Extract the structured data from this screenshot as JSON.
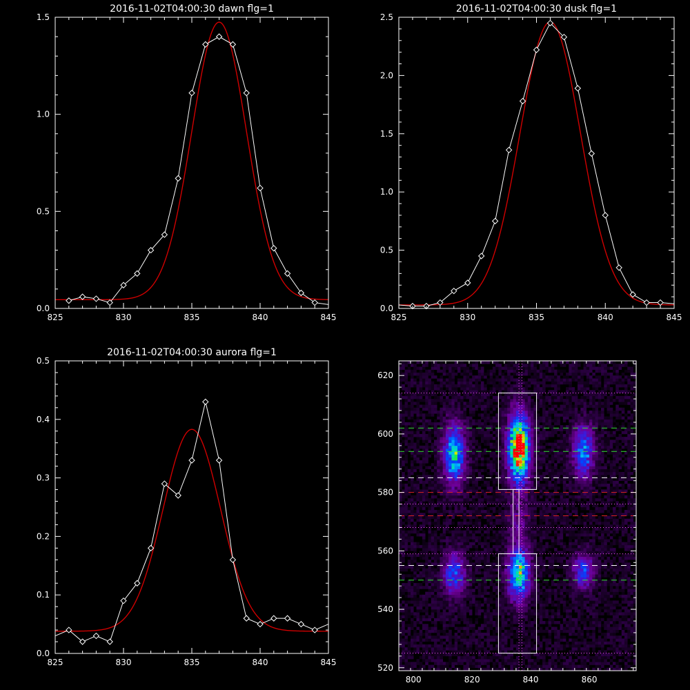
{
  "chart_data": [
    {
      "type": "line",
      "title": "2016-11-02T04:00:30 dawn flg=1",
      "xlim": [
        825,
        845
      ],
      "ylim": [
        0,
        1.5
      ],
      "xticks": [
        825,
        830,
        835,
        840,
        845
      ],
      "yticks": [
        0.0,
        0.5,
        1.0,
        1.5
      ],
      "xtick_labels": [
        "825",
        "830",
        "835",
        "840",
        "845"
      ],
      "ytick_labels": [
        "0.0",
        "0.5",
        "1.0",
        "1.5"
      ],
      "series": [
        {
          "color": "#ffffff",
          "marker": "diamond",
          "x": [
            826,
            827,
            828,
            829,
            830,
            831,
            832,
            833,
            834,
            835,
            836,
            837,
            838,
            839,
            840,
            841,
            842,
            843,
            844,
            845
          ],
          "y": [
            0.04,
            0.06,
            0.05,
            0.03,
            0.12,
            0.18,
            0.3,
            0.38,
            0.67,
            1.11,
            1.36,
            1.4,
            1.36,
            1.11,
            0.62,
            0.31,
            0.18,
            0.08,
            0.03,
            0.02
          ]
        },
        {
          "color": "#d00000",
          "fit": "gaussian",
          "amplitude": 1.43,
          "center": 837.0,
          "sigma": 2.0,
          "offset": 0.045,
          "x_range": [
            825,
            845
          ]
        }
      ]
    },
    {
      "type": "line",
      "title": "2016-11-02T04:00:30 dusk flg=1",
      "xlim": [
        825,
        845
      ],
      "ylim": [
        0,
        2.5
      ],
      "xticks": [
        825,
        830,
        835,
        840,
        845
      ],
      "yticks": [
        0.0,
        0.5,
        1.0,
        1.5,
        2.0,
        2.5
      ],
      "xtick_labels": [
        "825",
        "830",
        "835",
        "840",
        "845"
      ],
      "ytick_labels": [
        "0.0",
        "0.5",
        "1.0",
        "1.5",
        "2.0",
        "2.5"
      ],
      "series": [
        {
          "color": "#ffffff",
          "marker": "diamond",
          "x": [
            825,
            826,
            827,
            828,
            829,
            830,
            831,
            832,
            833,
            834,
            835,
            836,
            837,
            838,
            839,
            840,
            841,
            842,
            843,
            844,
            845
          ],
          "y": [
            0.03,
            0.02,
            0.02,
            0.05,
            0.15,
            0.22,
            0.45,
            0.75,
            1.36,
            1.78,
            2.22,
            2.45,
            2.33,
            1.89,
            1.33,
            0.8,
            0.35,
            0.12,
            0.05,
            0.05,
            0.04
          ]
        },
        {
          "color": "#d00000",
          "fit": "gaussian",
          "amplitude": 2.43,
          "center": 836.0,
          "sigma": 2.2,
          "offset": 0.03,
          "x_range": [
            825,
            845
          ]
        }
      ]
    },
    {
      "type": "line",
      "title": "2016-11-02T04:00:30 aurora flg=1",
      "xlim": [
        825,
        845
      ],
      "ylim": [
        0,
        0.5
      ],
      "xticks": [
        825,
        830,
        835,
        840,
        845
      ],
      "yticks": [
        0.0,
        0.1,
        0.2,
        0.3,
        0.4,
        0.5
      ],
      "xtick_labels": [
        "825",
        "830",
        "835",
        "840",
        "845"
      ],
      "ytick_labels": [
        "0.0",
        "0.1",
        "0.2",
        "0.3",
        "0.4",
        "0.5"
      ],
      "series": [
        {
          "color": "#ffffff",
          "marker": "diamond",
          "x": [
            825,
            826,
            827,
            828,
            829,
            830,
            831,
            832,
            833,
            834,
            835,
            836,
            837,
            838,
            839,
            840,
            841,
            842,
            843,
            844,
            845
          ],
          "y": [
            0.03,
            0.04,
            0.02,
            0.03,
            0.02,
            0.09,
            0.12,
            0.18,
            0.29,
            0.27,
            0.33,
            0.43,
            0.33,
            0.16,
            0.06,
            0.05,
            0.06,
            0.06,
            0.05,
            0.04,
            0.05
          ]
        },
        {
          "color": "#d00000",
          "fit": "gaussian",
          "amplitude": 0.345,
          "center": 835.0,
          "sigma": 2.1,
          "offset": 0.038,
          "x_range": [
            825,
            845
          ]
        }
      ]
    },
    {
      "type": "heatmap",
      "title": "",
      "xlim": [
        795,
        876
      ],
      "ylim": [
        519,
        625
      ],
      "xticks": [
        800,
        820,
        840,
        860
      ],
      "yticks": [
        520,
        540,
        560,
        580,
        600,
        620
      ],
      "xtick_labels": [
        "800",
        "820",
        "840",
        "860"
      ],
      "ytick_labels": [
        "520",
        "540",
        "560",
        "580",
        "600",
        "620"
      ],
      "colormap": "rainbow",
      "blobs": [
        {
          "x": 814,
          "y": 593,
          "sx": 2.5,
          "sy": 7,
          "peak": 0.62
        },
        {
          "x": 836,
          "y": 595,
          "sx": 2.5,
          "sy": 8,
          "peak": 1.0
        },
        {
          "x": 836,
          "y": 597,
          "sx": 1.2,
          "sy": 2,
          "peak": 0.35
        },
        {
          "x": 858,
          "y": 594,
          "sx": 2.5,
          "sy": 6,
          "peak": 0.5
        },
        {
          "x": 814,
          "y": 552,
          "sx": 2.5,
          "sy": 5,
          "peak": 0.45
        },
        {
          "x": 836,
          "y": 552,
          "sx": 2.5,
          "sy": 6,
          "peak": 0.72
        },
        {
          "x": 858,
          "y": 553,
          "sx": 2.5,
          "sy": 4,
          "peak": 0.4
        },
        {
          "x": 836,
          "y": 570,
          "sx": 2.5,
          "sy": 5,
          "peak": 0.18
        }
      ],
      "boxes": [
        {
          "x": [
            829,
            842
          ],
          "y": [
            581,
            614
          ],
          "color": "#ffffff"
        },
        {
          "x": [
            829,
            842
          ],
          "y": [
            525,
            559
          ],
          "color": "#ffffff"
        },
        {
          "x": [
            834,
            836
          ],
          "y": [
            559,
            581
          ],
          "color": "#ffffff"
        }
      ],
      "hlines": [
        {
          "y": 614,
          "color": "#ff55ff",
          "style": "dotted"
        },
        {
          "y": 525,
          "color": "#ff55ff",
          "style": "dotted"
        },
        {
          "y": 602,
          "color": "#33dd33",
          "style": "dashed"
        },
        {
          "y": 594,
          "color": "#33dd33",
          "style": "dashed"
        },
        {
          "y": 585,
          "color": "#ffffff",
          "style": "dashed"
        },
        {
          "y": 580,
          "color": "#dd2222",
          "style": "dashed"
        },
        {
          "y": 576,
          "color": "#ff55ff",
          "style": "dotted"
        },
        {
          "y": 572,
          "color": "#dd2222",
          "style": "dashed"
        },
        {
          "y": 568,
          "color": "#ff55ff",
          "style": "dotted"
        },
        {
          "y": 559,
          "color": "#ff55ff",
          "style": "dotted"
        },
        {
          "y": 555,
          "color": "#ffffff",
          "style": "dashed"
        },
        {
          "y": 550,
          "color": "#33dd33",
          "style": "dashed"
        }
      ],
      "vlines": [
        {
          "x": 836,
          "color": "#ff55ff",
          "style": "dotted"
        },
        {
          "x": 837,
          "color": "#ff55ff",
          "style": "dotted"
        }
      ]
    }
  ]
}
